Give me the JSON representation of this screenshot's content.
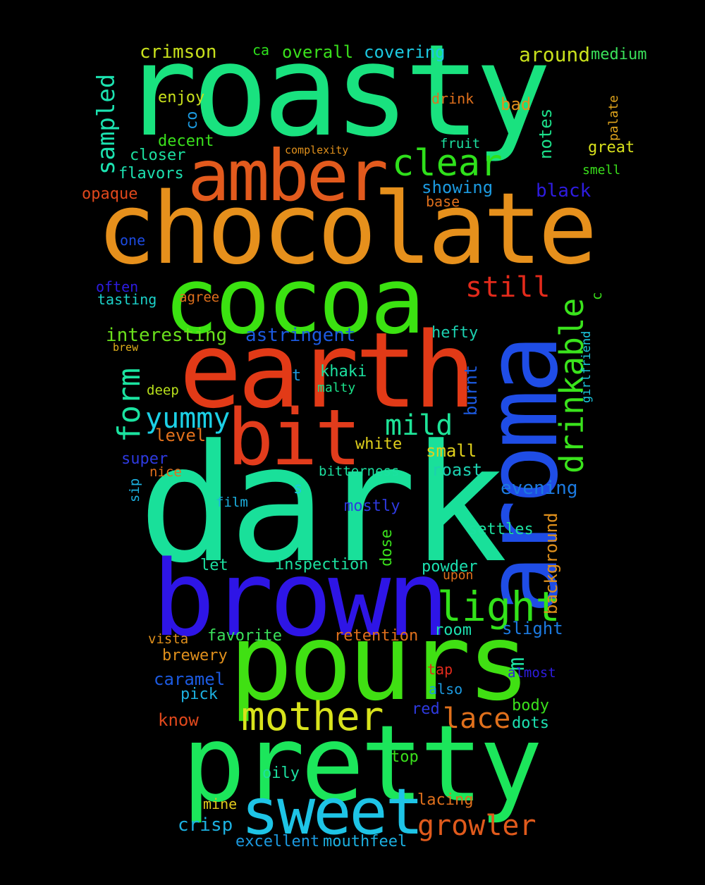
{
  "words": [
    {
      "id": "roasty",
      "text": "roasty",
      "color": "#19e27f"
    },
    {
      "id": "chocolate",
      "text": "chocolate",
      "color": "#e6901c"
    },
    {
      "id": "dark",
      "text": "dark",
      "color": "#19e09a"
    },
    {
      "id": "earth",
      "text": "earth",
      "color": "#e23a17"
    },
    {
      "id": "pours",
      "text": "pours",
      "color": "#40e013"
    },
    {
      "id": "brown",
      "text": "brown",
      "color": "#2e15e6"
    },
    {
      "id": "pretty",
      "text": "pretty",
      "color": "#1ce65b"
    },
    {
      "id": "aroma",
      "text": "aroma",
      "color": "#1f4de6"
    },
    {
      "id": "cocoa",
      "text": "cocoa",
      "color": "#3be211"
    },
    {
      "id": "amber",
      "text": "amber",
      "color": "#e25a1d"
    },
    {
      "id": "bit",
      "text": "bit",
      "color": "#e23c1c"
    },
    {
      "id": "sweet",
      "text": "sweet",
      "color": "#1ec4e6"
    },
    {
      "id": "mother",
      "text": "mother",
      "color": "#d8e31c"
    },
    {
      "id": "light",
      "text": "light",
      "color": "#33e21a"
    },
    {
      "id": "clear",
      "text": "clear",
      "color": "#2fe01b"
    },
    {
      "id": "drinkable",
      "text": "drinkable",
      "color": "#3ae31c"
    },
    {
      "id": "form",
      "text": "form",
      "color": "#1be3a0"
    },
    {
      "id": "yummy",
      "text": "yummy",
      "color": "#1cd0e6"
    },
    {
      "id": "mild",
      "text": "mild",
      "color": "#1ee498"
    },
    {
      "id": "still",
      "text": "still",
      "color": "#e22a1b"
    },
    {
      "id": "lace",
      "text": "lace",
      "color": "#e0701c"
    },
    {
      "id": "growler",
      "text": "growler",
      "color": "#e05a1c"
    },
    {
      "id": "sampled",
      "text": "sampled",
      "color": "#1ce2b0"
    },
    {
      "id": "crimson",
      "text": "crimson",
      "color": "#c8e01c"
    },
    {
      "id": "overall",
      "text": "overall",
      "color": "#3ae01c"
    },
    {
      "id": "covering",
      "text": "covering",
      "color": "#1cc8e0"
    },
    {
      "id": "around",
      "text": "around",
      "color": "#c8e01c"
    },
    {
      "id": "medium",
      "text": "medium",
      "color": "#3ae05a"
    },
    {
      "id": "ca",
      "text": "ca",
      "color": "#2ee01c"
    },
    {
      "id": "enjoy",
      "text": "enjoy",
      "color": "#c8e01c"
    },
    {
      "id": "co",
      "text": "co",
      "color": "#1c9ae0"
    },
    {
      "id": "drink",
      "text": "drink",
      "color": "#e0701c"
    },
    {
      "id": "bad",
      "text": "bad",
      "color": "#e0901c"
    },
    {
      "id": "palate",
      "text": "palate",
      "color": "#e0a41c"
    },
    {
      "id": "notes",
      "text": "notes",
      "color": "#1ce08a"
    },
    {
      "id": "decent",
      "text": "decent",
      "color": "#3ae01c"
    },
    {
      "id": "complexity",
      "text": "complexity",
      "color": "#e0901c"
    },
    {
      "id": "fruit",
      "text": "fruit",
      "color": "#1ce0a0"
    },
    {
      "id": "great",
      "text": "great",
      "color": "#d8e01c"
    },
    {
      "id": "closer",
      "text": "closer",
      "color": "#1ce0a0"
    },
    {
      "id": "flavors",
      "text": "flavors",
      "color": "#1ce0b0"
    },
    {
      "id": "smell",
      "text": "smell",
      "color": "#3ae01c"
    },
    {
      "id": "showing",
      "text": "showing",
      "color": "#1c9ae0"
    },
    {
      "id": "black",
      "text": "black",
      "color": "#2e1ce0"
    },
    {
      "id": "opaque",
      "text": "opaque",
      "color": "#e0481c"
    },
    {
      "id": "base",
      "text": "base",
      "color": "#e0701c"
    },
    {
      "id": "one",
      "text": "one",
      "color": "#1c4ae0"
    },
    {
      "id": "often",
      "text": "often",
      "color": "#2e1ce0"
    },
    {
      "id": "tasting",
      "text": "tasting",
      "color": "#1cd0c8"
    },
    {
      "id": "agree",
      "text": "agree",
      "color": "#e0701c"
    },
    {
      "id": "c",
      "text": "c",
      "color": "#3ae01c"
    },
    {
      "id": "interesting",
      "text": "interesting",
      "color": "#6ae01c"
    },
    {
      "id": "astringent",
      "text": "astringent",
      "color": "#1c5ae0"
    },
    {
      "id": "hefty",
      "text": "hefty",
      "color": "#1cd0b0"
    },
    {
      "id": "brew",
      "text": "brew",
      "color": "#e0b01c"
    },
    {
      "id": "girlfriend",
      "text": "girlfriend",
      "color": "#1cc8e0"
    },
    {
      "id": "t",
      "text": "t",
      "color": "#1c9ae0"
    },
    {
      "id": "khaki",
      "text": "khaki",
      "color": "#1ce0a0"
    },
    {
      "id": "burnt",
      "text": "burnt",
      "color": "#1c5ae0"
    },
    {
      "id": "deep",
      "text": "deep",
      "color": "#b8e01c"
    },
    {
      "id": "malty",
      "text": "malty",
      "color": "#1ce08a"
    },
    {
      "id": "level",
      "text": "level",
      "color": "#e0701c"
    },
    {
      "id": "white",
      "text": "white",
      "color": "#e0d01c"
    },
    {
      "id": "small",
      "text": "small",
      "color": "#e0d01c"
    },
    {
      "id": "super",
      "text": "super",
      "color": "#2e3ae0"
    },
    {
      "id": "roast",
      "text": "roast",
      "color": "#1cd0b0"
    },
    {
      "id": "nice",
      "text": "nice",
      "color": "#e0701c"
    },
    {
      "id": "bitterness",
      "text": "bitterness",
      "color": "#1ce0a0"
    },
    {
      "id": "sip",
      "text": "sip",
      "color": "#1cb0e0"
    },
    {
      "id": "s",
      "text": "s",
      "color": "#1cc8e0"
    },
    {
      "id": "evening",
      "text": "evening",
      "color": "#1c7ae0"
    },
    {
      "id": "film",
      "text": "film",
      "color": "#1cb0e0"
    },
    {
      "id": "mostly",
      "text": "mostly",
      "color": "#2e3ae0"
    },
    {
      "id": "background",
      "text": "background",
      "color": "#e0901c"
    },
    {
      "id": "dose",
      "text": "dose",
      "color": "#3ae01c"
    },
    {
      "id": "settles",
      "text": "settles",
      "color": "#1ce0a0"
    },
    {
      "id": "let",
      "text": "let",
      "color": "#1ce0a0"
    },
    {
      "id": "inspection",
      "text": "inspection",
      "color": "#1ce0a0"
    },
    {
      "id": "powder",
      "text": "powder",
      "color": "#1ce0b0"
    },
    {
      "id": "upon",
      "text": "upon",
      "color": "#e0701c"
    },
    {
      "id": "slight",
      "text": "slight",
      "color": "#1c7ae0"
    },
    {
      "id": "m",
      "text": "m",
      "color": "#1ce0a0"
    },
    {
      "id": "vista",
      "text": "vista",
      "color": "#e0901c"
    },
    {
      "id": "favorite",
      "text": "favorite",
      "color": "#3ae05a"
    },
    {
      "id": "retention",
      "text": "retention",
      "color": "#e0701c"
    },
    {
      "id": "room",
      "text": "room",
      "color": "#1ce0b0"
    },
    {
      "id": "brewery",
      "text": "brewery",
      "color": "#e0901c"
    },
    {
      "id": "tap",
      "text": "tap",
      "color": "#e02a1c"
    },
    {
      "id": "almost",
      "text": "almost",
      "color": "#2e1ce0"
    },
    {
      "id": "caramel",
      "text": "caramel",
      "color": "#1c5ae0"
    },
    {
      "id": "also",
      "text": "also",
      "color": "#1c9ae0"
    },
    {
      "id": "pick",
      "text": "pick",
      "color": "#1cb0e0"
    },
    {
      "id": "red",
      "text": "red",
      "color": "#2e3ae0"
    },
    {
      "id": "body",
      "text": "body",
      "color": "#3ae01c"
    },
    {
      "id": "know",
      "text": "know",
      "color": "#e0481c"
    },
    {
      "id": "dots",
      "text": "dots",
      "color": "#1ce0b0"
    },
    {
      "id": "top",
      "text": "top",
      "color": "#3ae01c"
    },
    {
      "id": "oily",
      "text": "oily",
      "color": "#1ce0a0"
    },
    {
      "id": "lacing",
      "text": "lacing",
      "color": "#e0701c"
    },
    {
      "id": "mine",
      "text": "mine",
      "color": "#e0c81c"
    },
    {
      "id": "crisp",
      "text": "crisp",
      "color": "#1cb0e0"
    },
    {
      "id": "excellent",
      "text": "excellent",
      "color": "#1c9ae0"
    },
    {
      "id": "mouthfeel",
      "text": "mouthfeel",
      "color": "#1cb0e0"
    }
  ]
}
